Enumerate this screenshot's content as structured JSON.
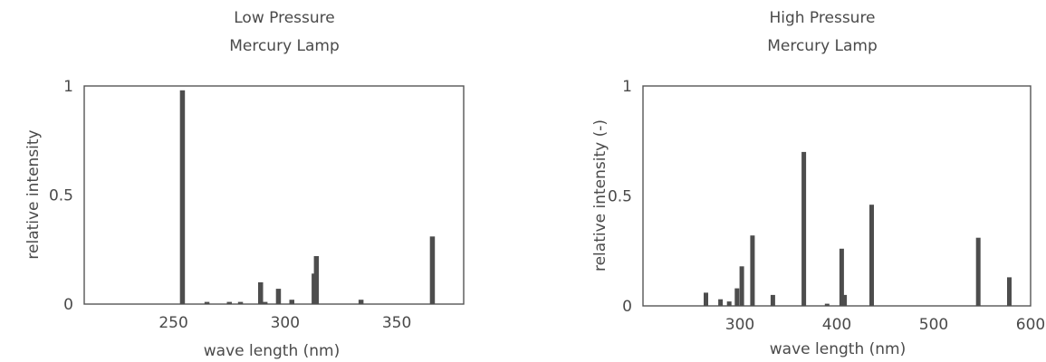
{
  "chart_data": [
    {
      "type": "bar",
      "title": "Low Pressure\nMercury Lamp",
      "xlabel": "wave length (nm)",
      "ylabel": "relative intensity",
      "xlim": [
        210,
        380
      ],
      "ylim": [
        0,
        1
      ],
      "xticks": [
        250,
        300,
        350
      ],
      "yticks": [
        0,
        0.5,
        1
      ],
      "ytick_labels": [
        "0",
        "0.5",
        "1"
      ],
      "grid": false,
      "bar_color": "#4d4d4d",
      "x": [
        254,
        265,
        275,
        280,
        289,
        291,
        297,
        303,
        313,
        314,
        334,
        366
      ],
      "values": [
        0.98,
        0.01,
        0.01,
        0.01,
        0.1,
        0.01,
        0.07,
        0.02,
        0.14,
        0.22,
        0.02,
        0.31
      ]
    },
    {
      "type": "bar",
      "title": "High Pressure\nMercury Lamp",
      "xlabel": "wave length (nm)",
      "ylabel": "relative intensity (-)",
      "xlim": [
        200,
        600
      ],
      "ylim": [
        0,
        1
      ],
      "xticks": [
        300,
        400,
        500,
        600
      ],
      "yticks": [
        0,
        0.5,
        1
      ],
      "ytick_labels": [
        "0",
        "0.5",
        "1"
      ],
      "grid": false,
      "bar_color": "#4d4d4d",
      "x": [
        265,
        280,
        289,
        297,
        302,
        313,
        334,
        366,
        390,
        405,
        408,
        436,
        546,
        578
      ],
      "values": [
        0.06,
        0.03,
        0.02,
        0.08,
        0.18,
        0.32,
        0.05,
        0.7,
        0.01,
        0.26,
        0.05,
        0.46,
        0.31,
        0.13
      ]
    }
  ]
}
